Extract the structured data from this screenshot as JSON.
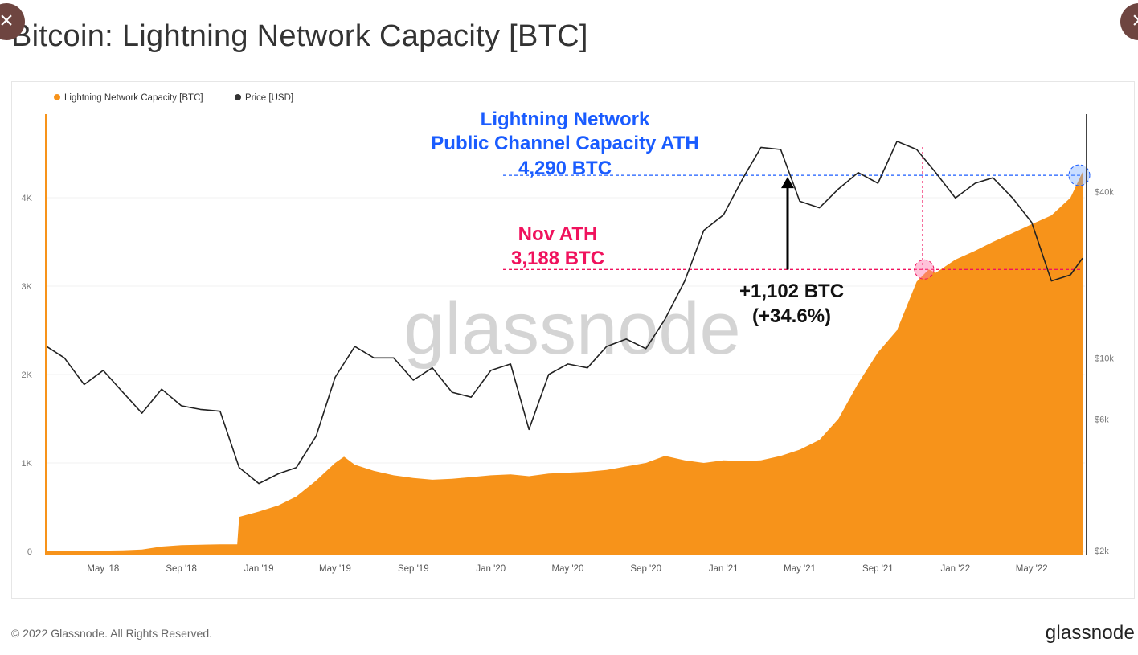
{
  "title": "Bitcoin: Lightning Network Capacity [BTC]",
  "footer": "© 2022 Glassnode. All Rights Reserved.",
  "brand": "glassnode",
  "watermark": "glassnode",
  "close_icon": "close-icon",
  "chart_data": {
    "type": "area+line",
    "legend_position": "top-left",
    "grid": true,
    "x_ticks": [
      "May '18",
      "Sep '18",
      "Jan '19",
      "May '19",
      "Sep '19",
      "Jan '20",
      "May '20",
      "Sep '20",
      "Jan '21",
      "May '21",
      "Sep '21",
      "Jan '22",
      "May '22"
    ],
    "x_tick_dates": [
      "2018-05-01",
      "2018-09-01",
      "2019-01-01",
      "2019-05-01",
      "2019-09-01",
      "2020-01-01",
      "2020-05-01",
      "2020-09-01",
      "2021-01-01",
      "2021-05-01",
      "2021-09-01",
      "2022-01-01",
      "2022-05-01"
    ],
    "x_range": [
      "2018-02-01",
      "2022-07-20"
    ],
    "y_left": {
      "ticks": [
        "0",
        "1K",
        "2K",
        "3K",
        "4K"
      ],
      "tick_values": [
        0,
        1000,
        2000,
        3000,
        4000
      ],
      "range": [
        0,
        4980
      ],
      "scale": "linear"
    },
    "y_right": {
      "ticks": [
        "$2k",
        "$6k",
        "$10k",
        "$40k"
      ],
      "tick_values": [
        2000,
        6000,
        10000,
        40000
      ],
      "range": [
        2000,
        72000
      ],
      "scale": "log"
    },
    "series": [
      {
        "name": "Lightning Network Capacity [BTC]",
        "type": "area",
        "axis": "left",
        "color": "#f7931a",
        "x": [
          "2018-02-01",
          "2018-03-01",
          "2018-04-01",
          "2018-05-01",
          "2018-06-01",
          "2018-07-01",
          "2018-08-01",
          "2018-09-01",
          "2018-10-01",
          "2018-11-01",
          "2018-11-28",
          "2018-12-01",
          "2019-01-01",
          "2019-02-01",
          "2019-03-01",
          "2019-04-01",
          "2019-05-01",
          "2019-05-15",
          "2019-06-01",
          "2019-07-01",
          "2019-08-01",
          "2019-09-01",
          "2019-10-01",
          "2019-11-01",
          "2019-12-01",
          "2020-01-01",
          "2020-02-01",
          "2020-03-01",
          "2020-04-01",
          "2020-05-01",
          "2020-06-01",
          "2020-07-01",
          "2020-08-01",
          "2020-09-01",
          "2020-10-01",
          "2020-11-01",
          "2020-12-01",
          "2021-01-01",
          "2021-02-01",
          "2021-03-01",
          "2021-04-01",
          "2021-05-01",
          "2021-06-01",
          "2021-07-01",
          "2021-08-01",
          "2021-09-01",
          "2021-10-01",
          "2021-11-01",
          "2021-11-20",
          "2021-12-01",
          "2022-01-01",
          "2022-02-01",
          "2022-03-01",
          "2022-04-01",
          "2022-05-01",
          "2022-06-01",
          "2022-07-01",
          "2022-07-20"
        ],
        "values": [
          2,
          3,
          5,
          8,
          12,
          20,
          55,
          70,
          75,
          80,
          80,
          390,
          450,
          520,
          620,
          800,
          1000,
          1070,
          980,
          910,
          860,
          830,
          810,
          820,
          840,
          860,
          870,
          850,
          880,
          890,
          900,
          920,
          960,
          1000,
          1080,
          1030,
          1000,
          1030,
          1020,
          1030,
          1080,
          1150,
          1260,
          1500,
          1900,
          2250,
          2500,
          3050,
          3188,
          3150,
          3300,
          3400,
          3500,
          3600,
          3700,
          3800,
          4000,
          4290
        ]
      },
      {
        "name": "Price [USD]",
        "type": "line",
        "axis": "right",
        "color": "#222222",
        "x": [
          "2018-02-01",
          "2018-03-01",
          "2018-04-01",
          "2018-05-01",
          "2018-06-01",
          "2018-07-01",
          "2018-08-01",
          "2018-09-01",
          "2018-10-01",
          "2018-11-01",
          "2018-12-01",
          "2019-01-01",
          "2019-02-01",
          "2019-03-01",
          "2019-04-01",
          "2019-05-01",
          "2019-06-01",
          "2019-07-01",
          "2019-08-01",
          "2019-09-01",
          "2019-10-01",
          "2019-11-01",
          "2019-12-01",
          "2020-01-01",
          "2020-02-01",
          "2020-03-01",
          "2020-04-01",
          "2020-05-01",
          "2020-06-01",
          "2020-07-01",
          "2020-08-01",
          "2020-09-01",
          "2020-10-01",
          "2020-11-01",
          "2020-12-01",
          "2021-01-01",
          "2021-02-01",
          "2021-03-01",
          "2021-04-01",
          "2021-05-01",
          "2021-06-01",
          "2021-07-01",
          "2021-08-01",
          "2021-09-01",
          "2021-10-01",
          "2021-11-01",
          "2021-12-01",
          "2022-01-01",
          "2022-02-01",
          "2022-03-01",
          "2022-04-01",
          "2022-05-01",
          "2022-06-01",
          "2022-07-01",
          "2022-07-20"
        ],
        "values": [
          11000,
          10000,
          8000,
          9000,
          7500,
          6300,
          7700,
          6700,
          6500,
          6400,
          4000,
          3500,
          3800,
          4000,
          5200,
          8500,
          11000,
          10000,
          10000,
          8300,
          9200,
          7500,
          7200,
          9000,
          9500,
          5500,
          8700,
          9500,
          9200,
          11000,
          11700,
          10800,
          13800,
          19000,
          29000,
          33000,
          45000,
          58000,
          57000,
          37000,
          35000,
          41000,
          47000,
          43000,
          61000,
          57000,
          47000,
          38000,
          43000,
          45000,
          38000,
          31000,
          19000,
          20000,
          23000
        ]
      }
    ],
    "annotations": {
      "ath_title": "Lightning Network",
      "ath_subtitle": "Public Channel Capacity ATH",
      "ath_value": "4,290 BTC",
      "ath_color": "#1a5cff",
      "nov_title": "Nov ATH",
      "nov_value": "3,188 BTC",
      "nov_color": "#f0125d",
      "delta": "+1,102 BTC",
      "delta_pct": "(+34.6%)"
    }
  }
}
